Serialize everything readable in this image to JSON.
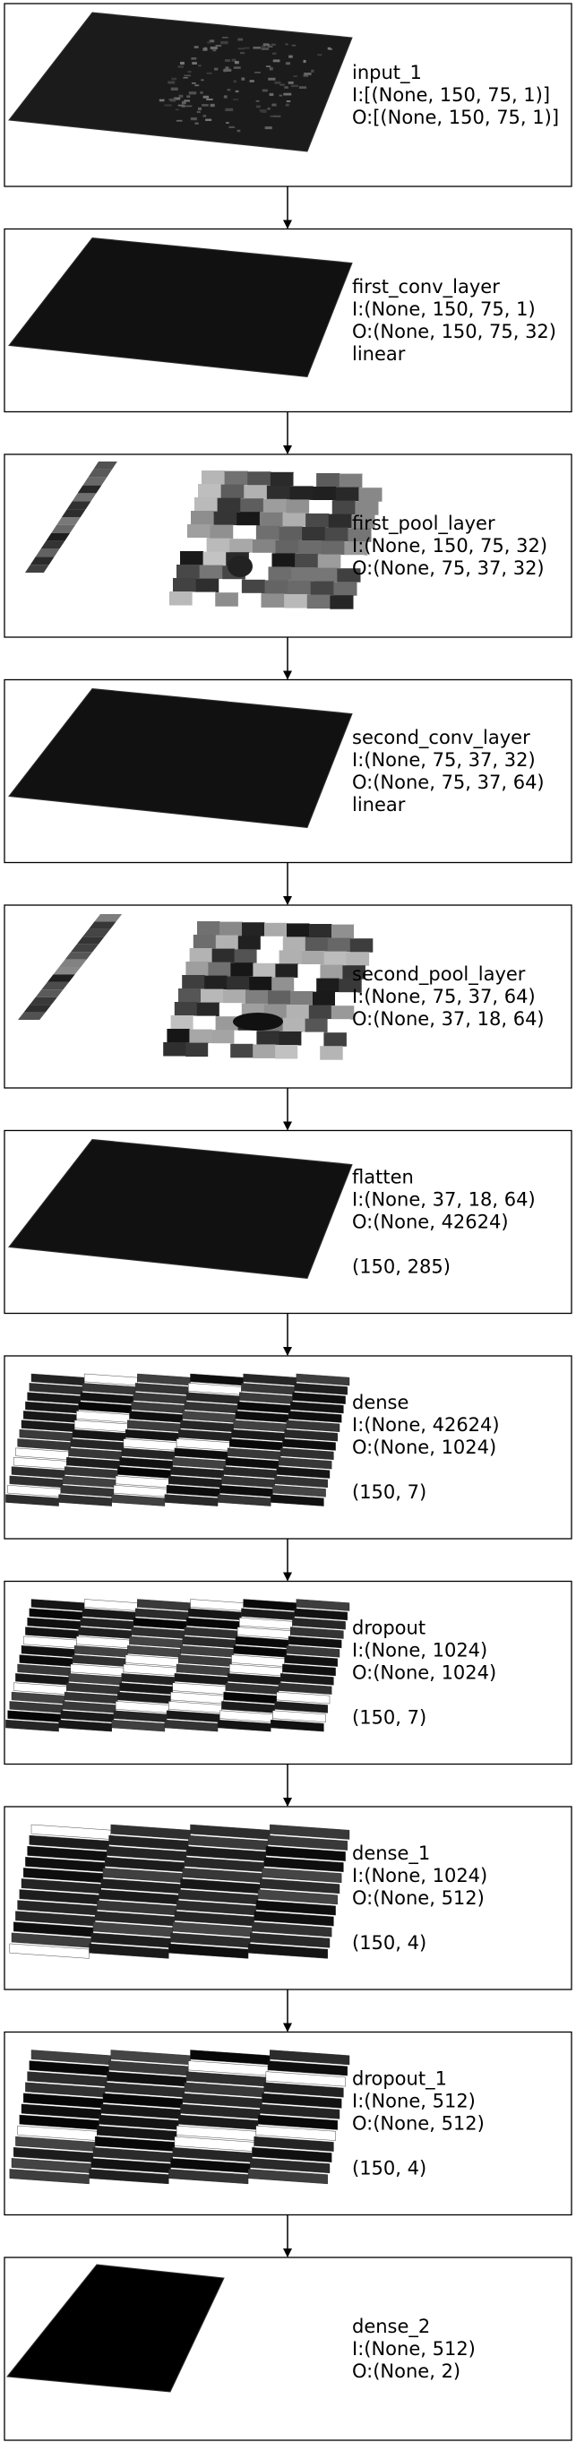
{
  "layers": [
    {
      "name": "input_1",
      "input": "I:[(None, 150, 75, 1)]",
      "output": "O:[(None, 150, 75, 1)]",
      "activation": "",
      "shape": "",
      "style": "image"
    },
    {
      "name": "first_conv_layer",
      "input": "I:(None, 150, 75, 1)",
      "output": "O:(None, 150, 75, 32)",
      "activation": "linear",
      "shape": "",
      "style": "dark"
    },
    {
      "name": "first_pool_layer",
      "input": "I:(None, 150, 75, 32)",
      "output": "O:(None, 75, 37, 32)",
      "activation": "",
      "shape": "",
      "style": "pool"
    },
    {
      "name": "second_conv_layer",
      "input": "I:(None, 75, 37, 32)",
      "output": "O:(None, 75, 37, 64)",
      "activation": "linear",
      "shape": "",
      "style": "dark"
    },
    {
      "name": "second_pool_layer",
      "input": "I:(None, 75, 37, 64)",
      "output": "O:(None, 37, 18, 64)",
      "activation": "",
      "shape": "",
      "style": "pool2"
    },
    {
      "name": "flatten",
      "input": "I:(None, 37, 18, 64)",
      "output": "O:(None, 42624)",
      "activation": "",
      "shape": "(150, 285)",
      "style": "dark"
    },
    {
      "name": "dense",
      "input": "I:(None, 42624)",
      "output": "O:(None, 1024)",
      "activation": "",
      "shape": "(150, 7)",
      "style": "bands7"
    },
    {
      "name": "dropout",
      "input": "I:(None, 1024)",
      "output": "O:(None, 1024)",
      "activation": "",
      "shape": "(150, 7)",
      "style": "bands7"
    },
    {
      "name": "dense_1",
      "input": "I:(None, 1024)",
      "output": "O:(None, 512)",
      "activation": "",
      "shape": "(150, 4)",
      "style": "bands4"
    },
    {
      "name": "dropout_1",
      "input": "I:(None, 512)",
      "output": "O:(None, 512)",
      "activation": "",
      "shape": "(150, 4)",
      "style": "bands4"
    },
    {
      "name": "dense_2",
      "input": "I:(None, 512)",
      "output": "O:(None, 2)",
      "activation": "",
      "shape": "",
      "style": "black"
    }
  ]
}
